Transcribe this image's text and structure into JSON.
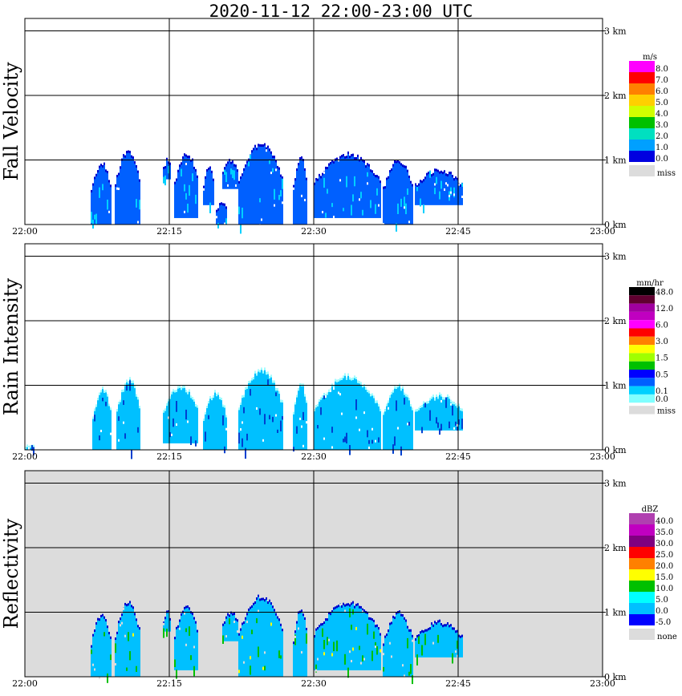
{
  "title": "2020-11-12   22:00-23:00 UTC",
  "colors": {
    "blank": "#ffffff",
    "miss": "#dcdcdc",
    "grid": "#000000"
  },
  "chart_data": [
    {
      "type": "heatmap",
      "title": "Fall Velocity",
      "x_ticks": [
        "22:00",
        "22:15",
        "22:30",
        "22:45",
        "23:00"
      ],
      "y_ticks": [
        "0 km",
        "1 km",
        "2 km",
        "3 km"
      ],
      "xlim_min": [
        0,
        60
      ],
      "ylim_km": [
        0,
        3.2
      ],
      "grid": true,
      "legend": {
        "unit": "m/s",
        "labels": [
          "8.0",
          "7.0",
          "6.0",
          "5.0",
          "4.0",
          "3.0",
          "2.0",
          "1.0",
          "0.0",
          "miss"
        ],
        "colors": [
          "#ff00ff",
          "#ff0000",
          "#ff8000",
          "#ffd000",
          "#d0ff00",
          "#00c000",
          "#00e0c0",
          "#00a0ff",
          "#0000e0",
          "#dcdcdc"
        ]
      },
      "echo_colors": {
        "core": "#0060ff",
        "edge": "#0000cc",
        "accent": "#00d0ff"
      },
      "echoes": [
        {
          "t0": 6.8,
          "t1": 9.0,
          "h0": 0.0,
          "h1": 0.95
        },
        {
          "t0": 9.3,
          "t1": 12.0,
          "h0": 0.0,
          "h1": 1.15
        },
        {
          "t0": 14.3,
          "t1": 15.2,
          "h0": 0.7,
          "h1": 1.0
        },
        {
          "t0": 15.5,
          "t1": 18.0,
          "h0": 0.1,
          "h1": 1.1
        },
        {
          "t0": 18.5,
          "t1": 19.7,
          "h0": 0.3,
          "h1": 0.9
        },
        {
          "t0": 19.8,
          "t1": 21.0,
          "h0": 0.0,
          "h1": 0.35
        },
        {
          "t0": 20.5,
          "t1": 22.2,
          "h0": 0.55,
          "h1": 1.0
        },
        {
          "t0": 22.2,
          "t1": 26.8,
          "h0": 0.0,
          "h1": 1.25
        },
        {
          "t0": 27.8,
          "t1": 29.3,
          "h0": 0.0,
          "h1": 1.05
        },
        {
          "t0": 30.0,
          "t1": 37.0,
          "h0": 0.1,
          "h1": 1.1
        },
        {
          "t0": 37.2,
          "t1": 40.3,
          "h0": 0.0,
          "h1": 1.0
        },
        {
          "t0": 40.5,
          "t1": 45.5,
          "h0": 0.3,
          "h1": 0.85
        }
      ]
    },
    {
      "type": "heatmap",
      "title": "Rain Intensity",
      "x_ticks": [
        "22:00",
        "22:15",
        "22:30",
        "22:45",
        "23:00"
      ],
      "y_ticks": [
        "0 km",
        "1 km",
        "2 km",
        "3 km"
      ],
      "xlim_min": [
        0,
        60
      ],
      "ylim_km": [
        0,
        3.2
      ],
      "grid": true,
      "legend": {
        "unit": "mm/hr",
        "labels": [
          "48.0",
          "",
          "12.0",
          "",
          "6.0",
          "",
          "3.0",
          "",
          "1.5",
          "",
          "0.5",
          "",
          "0.1",
          "0.0",
          "miss"
        ],
        "colors": [
          "#000000",
          "#600030",
          "#a000a0",
          "#c000c0",
          "#ff00ff",
          "#ff0000",
          "#ff8000",
          "#ffff00",
          "#a0ff00",
          "#00c000",
          "#0000ff",
          "#0060ff",
          "#00d0ff",
          "#80ffff",
          "#dcdcdc"
        ]
      },
      "echo_colors": {
        "core": "#00c0ff",
        "edge": "#a0ffff",
        "accent": "#0040d0"
      },
      "echoes": [
        {
          "t0": 0.0,
          "t1": 1.0,
          "h0": 0.0,
          "h1": 0.1
        },
        {
          "t0": 7.0,
          "t1": 9.0,
          "h0": 0.0,
          "h1": 0.95
        },
        {
          "t0": 9.5,
          "t1": 12.0,
          "h0": 0.0,
          "h1": 1.1
        },
        {
          "t0": 14.3,
          "t1": 18.0,
          "h0": 0.1,
          "h1": 1.0
        },
        {
          "t0": 18.5,
          "t1": 21.0,
          "h0": 0.0,
          "h1": 0.9
        },
        {
          "t0": 22.2,
          "t1": 26.8,
          "h0": 0.0,
          "h1": 1.25
        },
        {
          "t0": 27.8,
          "t1": 29.3,
          "h0": 0.0,
          "h1": 1.05
        },
        {
          "t0": 30.0,
          "t1": 37.0,
          "h0": 0.0,
          "h1": 1.15
        },
        {
          "t0": 37.2,
          "t1": 40.3,
          "h0": 0.0,
          "h1": 1.0
        },
        {
          "t0": 40.5,
          "t1": 45.5,
          "h0": 0.3,
          "h1": 0.85
        }
      ]
    },
    {
      "type": "heatmap",
      "title": "Reflectivity",
      "x_ticks": [
        "22:00",
        "22:15",
        "22:30",
        "22:45",
        "23:00"
      ],
      "y_ticks": [
        "0 km",
        "1 km",
        "2 km",
        "3 km"
      ],
      "xlim_min": [
        0,
        60
      ],
      "ylim_km": [
        0,
        3.2
      ],
      "grid": true,
      "background": "#dcdcdc",
      "legend": {
        "unit": "dBZ",
        "labels": [
          "40.0",
          "35.0",
          "30.0",
          "25.0",
          "20.0",
          "15.0",
          "10.0",
          "5.0",
          "0.0",
          "-5.0",
          "none"
        ],
        "colors": [
          "#b040b0",
          "#c000c0",
          "#800080",
          "#ff0000",
          "#ff8000",
          "#ffff00",
          "#00c000",
          "#00ffff",
          "#00c0ff",
          "#0000ff",
          "#dcdcdc"
        ]
      },
      "echo_colors": {
        "core": "#00c0ff",
        "edge": "#0000cc",
        "accent": "#00c000",
        "hot": "#ffff00"
      },
      "echoes": [
        {
          "t0": 6.8,
          "t1": 9.0,
          "h0": 0.0,
          "h1": 0.95
        },
        {
          "t0": 9.3,
          "t1": 12.0,
          "h0": 0.0,
          "h1": 1.15
        },
        {
          "t0": 14.3,
          "t1": 15.2,
          "h0": 0.7,
          "h1": 1.0
        },
        {
          "t0": 15.5,
          "t1": 18.0,
          "h0": 0.1,
          "h1": 1.1
        },
        {
          "t0": 20.5,
          "t1": 22.2,
          "h0": 0.55,
          "h1": 1.0
        },
        {
          "t0": 22.2,
          "t1": 26.8,
          "h0": 0.0,
          "h1": 1.25
        },
        {
          "t0": 27.8,
          "t1": 29.3,
          "h0": 0.0,
          "h1": 1.05
        },
        {
          "t0": 30.0,
          "t1": 37.0,
          "h0": 0.1,
          "h1": 1.15
        },
        {
          "t0": 37.2,
          "t1": 40.3,
          "h0": 0.0,
          "h1": 1.0
        },
        {
          "t0": 40.5,
          "t1": 45.5,
          "h0": 0.3,
          "h1": 0.85
        }
      ]
    }
  ]
}
